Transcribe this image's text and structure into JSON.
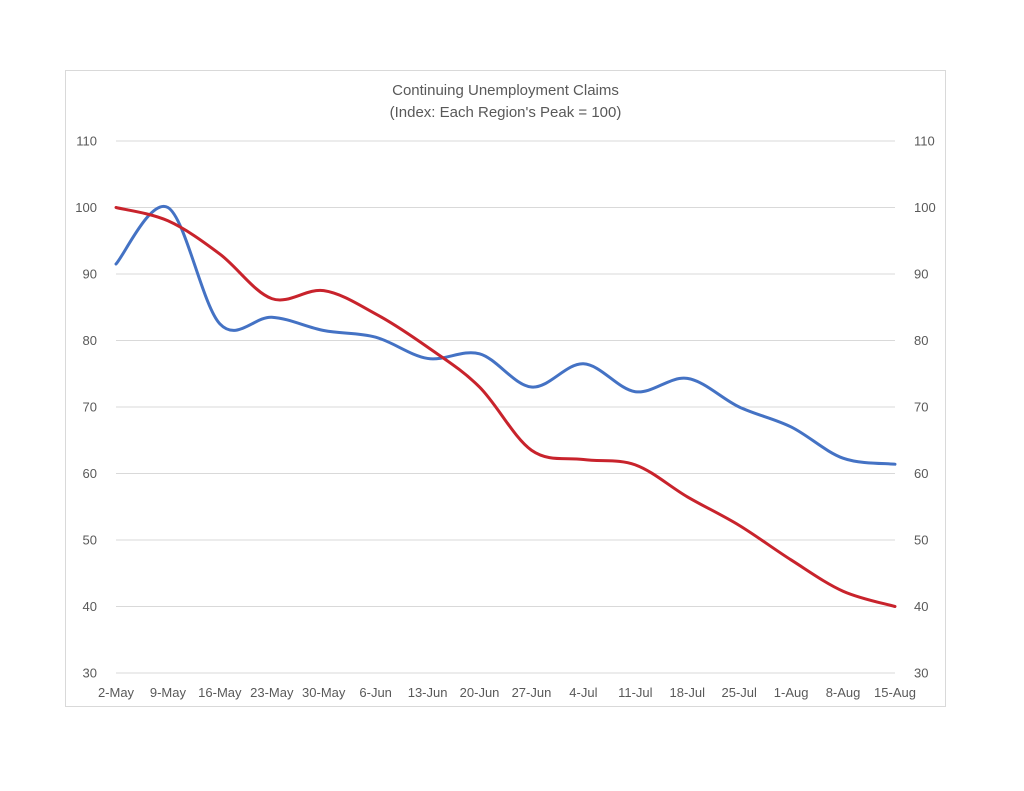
{
  "chart_data": {
    "type": "line",
    "title": "Continuing Unemployment Claims",
    "subtitle": "(Index: Each Region's Peak = 100)",
    "xlabel": "",
    "ylabel": "",
    "categories": [
      "2-May",
      "9-May",
      "16-May",
      "23-May",
      "30-May",
      "6-Jun",
      "13-Jun",
      "20-Jun",
      "27-Jun",
      "4-Jul",
      "11-Jul",
      "18-Jul",
      "25-Jul",
      "1-Aug",
      "8-Aug",
      "15-Aug"
    ],
    "ylim": [
      30,
      110
    ],
    "yticks": [
      30,
      40,
      50,
      60,
      70,
      80,
      90,
      100,
      110
    ],
    "secondary_axis": true,
    "grid": true,
    "legend": "none",
    "series": [
      {
        "color": "#4472C4",
        "values": [
          91.5,
          100,
          82.5,
          83.5,
          81.5,
          80.5,
          77.3,
          78,
          73,
          76.5,
          72.3,
          74.3,
          70,
          67,
          62.3,
          61.4
        ]
      },
      {
        "color": "#C8232C",
        "values": [
          100,
          98,
          93,
          86.3,
          87.5,
          84,
          79,
          73,
          63.5,
          62.1,
          61.3,
          56.5,
          52.2,
          47,
          42.3,
          40
        ]
      }
    ]
  }
}
